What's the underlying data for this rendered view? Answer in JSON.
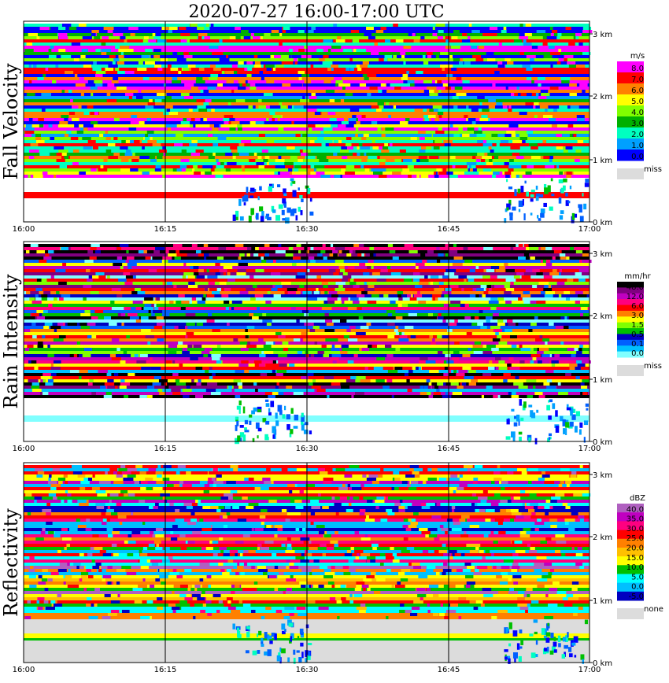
{
  "title": "2020-07-27   16:00-17:00 UTC",
  "time_ticks": [
    "16:00",
    "16:15",
    "16:30",
    "16:45",
    "17:00"
  ],
  "height_ticks": [
    "0 km",
    "1 km",
    "2 km",
    "3 km"
  ],
  "chart_data": [
    {
      "type": "heatmap",
      "title": "Fall Velocity",
      "unit": "m/s",
      "xlim": [
        "16:00",
        "17:00"
      ],
      "ylim_km": [
        0,
        3.2
      ],
      "colorbar": {
        "levels": [
          "8.0",
          "7.0",
          "6.0",
          "5.0",
          "4.0",
          "3.0",
          "2.0",
          "1.0",
          "0.0"
        ],
        "colors": [
          "#ff00ff",
          "#ff0000",
          "#ff8000",
          "#ffff00",
          "#80ff00",
          "#00b000",
          "#00ffc0",
          "#00a0ff",
          "#0000ff"
        ],
        "missing_label": "miss",
        "missing_color": "#dcdcdc"
      }
    },
    {
      "type": "heatmap",
      "title": "Rain Intensity",
      "unit": "mm/hr",
      "xlim": [
        "16:00",
        "17:00"
      ],
      "ylim_km": [
        0,
        3.2
      ],
      "colorbar": {
        "levels": [
          "48.0",
          "12.0",
          "6.0",
          "3.0",
          "1.5",
          "0.5",
          "0.1",
          "0.0"
        ],
        "colors": [
          "#000000",
          "#800080",
          "#c000c0",
          "#ff0080",
          "#ff0000",
          "#ff8000",
          "#ffff00",
          "#80ff00",
          "#00c000",
          "#0000c0",
          "#0060ff",
          "#00c0ff",
          "#80ffff"
        ],
        "missing_label": "miss",
        "missing_color": "#dcdcdc"
      }
    },
    {
      "type": "heatmap",
      "title": "Reflectivity",
      "unit": "dBZ",
      "xlim": [
        "16:00",
        "17:00"
      ],
      "ylim_km": [
        0,
        3.2
      ],
      "colorbar": {
        "levels": [
          "40.0",
          "35.0",
          "30.0",
          "25.0",
          "20.0",
          "15.0",
          "10.0",
          "5.0",
          "0.0",
          "-5.0"
        ],
        "colors": [
          "#b060c0",
          "#c000c0",
          "#ff0080",
          "#ff0000",
          "#ff8000",
          "#ffc000",
          "#ffff00",
          "#00c000",
          "#00ffff",
          "#00c0ff",
          "#0000c0"
        ],
        "missing_label": "none",
        "missing_color": "#dcdcdc"
      }
    }
  ]
}
